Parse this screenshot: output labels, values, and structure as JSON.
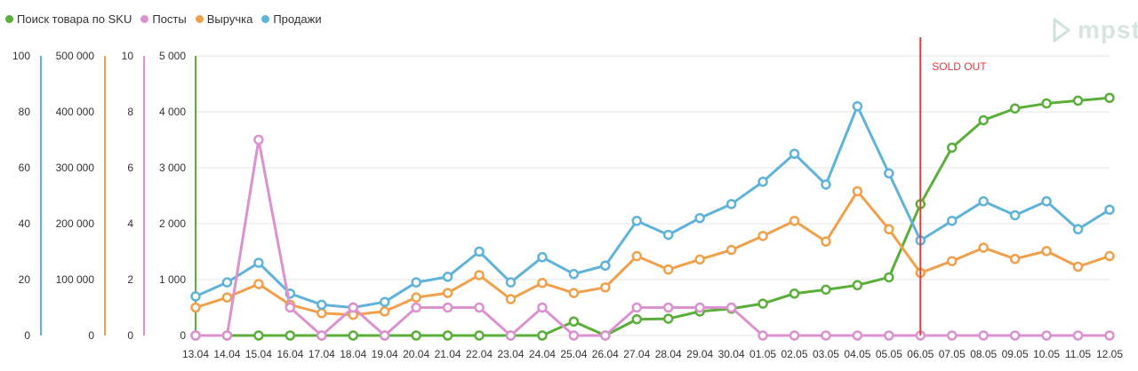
{
  "legend": [
    {
      "label": "Поиск товара по SKU",
      "color": "#5aaf3a"
    },
    {
      "label": "Посты",
      "color": "#dc92cf"
    },
    {
      "label": "Выручка",
      "color": "#f0a04b"
    },
    {
      "label": "Продажи",
      "color": "#5fb3d9"
    }
  ],
  "logo": {
    "text": "mpst"
  },
  "chart_data": {
    "type": "line",
    "x": [
      "13.04",
      "14.04",
      "15.04",
      "16.04",
      "17.04",
      "18.04",
      "19.04",
      "20.04",
      "21.04",
      "22.04",
      "23.04",
      "24.04",
      "25.04",
      "26.04",
      "27.04",
      "28.04",
      "29.04",
      "30.04",
      "01.05",
      "02.05",
      "03.05",
      "04.05",
      "05.05",
      "06.05",
      "07.05",
      "08.05",
      "09.05",
      "10.05",
      "11.05",
      "12.05"
    ],
    "axes": [
      {
        "id": "sales",
        "color": "#5fb3d9",
        "range": [
          0,
          100
        ],
        "ticks": [
          "100",
          "80",
          "60",
          "40",
          "20",
          "0"
        ]
      },
      {
        "id": "revenue",
        "color": "#f0a04b",
        "range": [
          0,
          500000
        ],
        "ticks": [
          "500 000",
          "400 000",
          "300 000",
          "200 000",
          "100 000",
          "0"
        ]
      },
      {
        "id": "posts",
        "color": "#dc92cf",
        "range": [
          0,
          10
        ],
        "ticks": [
          "10",
          "8",
          "6",
          "4",
          "2",
          "0"
        ]
      },
      {
        "id": "search",
        "color": "#5aaf3a",
        "range": [
          0,
          5000
        ],
        "ticks": [
          "5 000",
          "4 000",
          "3 000",
          "2 000",
          "1 000",
          "0"
        ]
      }
    ],
    "series": [
      {
        "name": "Продажи",
        "axis": "sales",
        "color": "#5fb3d9",
        "values": [
          14,
          19,
          26,
          15,
          11,
          10,
          12,
          19,
          21,
          30,
          19,
          28,
          22,
          25,
          41,
          36,
          42,
          47,
          55,
          65,
          54,
          82,
          58,
          34,
          41,
          48,
          43,
          48,
          38,
          45
        ]
      },
      {
        "name": "Выручка",
        "axis": "revenue",
        "color": "#f0a04b",
        "values": [
          50000,
          68000,
          92000,
          55000,
          40000,
          37000,
          43000,
          68000,
          76000,
          108000,
          65000,
          94000,
          76000,
          86000,
          142000,
          118000,
          136000,
          153000,
          178000,
          205000,
          168000,
          258000,
          190000,
          112000,
          133000,
          157000,
          137000,
          151000,
          123000,
          142000
        ]
      },
      {
        "name": "Посты",
        "axis": "posts",
        "color": "#dc92cf",
        "values": [
          0,
          0,
          7,
          1,
          0,
          1,
          0,
          1,
          1,
          1,
          0,
          1,
          0,
          0,
          1,
          1,
          1,
          1,
          0,
          0,
          0,
          0,
          0,
          0,
          0,
          0,
          0,
          0,
          0,
          0
        ]
      },
      {
        "name": "Поиск товара по SKU",
        "axis": "search",
        "color": "#5aaf3a",
        "values": [
          0,
          0,
          0,
          0,
          0,
          0,
          0,
          0,
          0,
          0,
          0,
          0,
          250,
          0,
          290,
          300,
          430,
          480,
          570,
          750,
          820,
          900,
          1040,
          2350,
          3360,
          3850,
          4060,
          4150,
          4200,
          4250
        ]
      }
    ],
    "annotations": [
      {
        "x": "06.05",
        "text": "SOLD OUT",
        "color": "#e03a3a"
      }
    ],
    "grid": true,
    "legend_position": "top-left"
  }
}
